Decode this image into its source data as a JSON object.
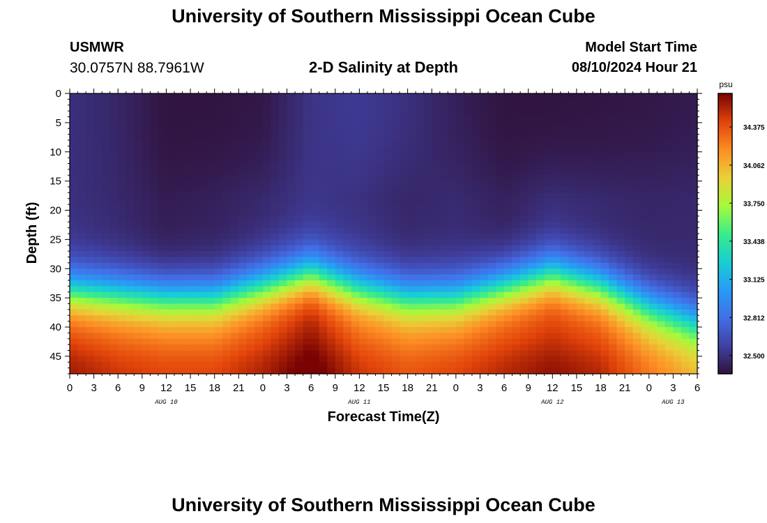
{
  "header": {
    "title": "University of Southern Mississippi Ocean Cube",
    "station": "USMWR",
    "coords": "30.0757N  88.7961W",
    "subtitle": "2-D Salinity at Depth",
    "model_start_label": "Model Start Time",
    "model_start_value": "08/10/2024 Hour 21"
  },
  "footer": {
    "title": "University of Southern Mississippi Ocean Cube"
  },
  "chart_data": {
    "type": "heatmap",
    "title": "2-D Salinity at Depth",
    "xlabel": "Forecast Time(Z)",
    "ylabel": "Depth (ft)",
    "x_ticks": [
      "0",
      "3",
      "6",
      "9",
      "12",
      "15",
      "18",
      "21",
      "0",
      "3",
      "6",
      "9",
      "12",
      "15",
      "18",
      "21",
      "0",
      "3",
      "6",
      "9",
      "12",
      "15",
      "18",
      "21",
      "0",
      "3",
      "6"
    ],
    "date_labels": [
      {
        "label": "AUG 10",
        "tick_index": 4
      },
      {
        "label": "AUG 11",
        "tick_index": 12
      },
      {
        "label": "AUG 12",
        "tick_index": 20
      },
      {
        "label": "AUG 13",
        "tick_index": 25
      }
    ],
    "y_ticks": [
      "0",
      "5",
      "10",
      "15",
      "20",
      "25",
      "30",
      "35",
      "40",
      "45"
    ],
    "ylim": [
      0,
      48
    ],
    "xlim_hours": [
      0,
      78
    ],
    "colorbar": {
      "unit": "psu",
      "ticks": [
        "34.375",
        "34.062",
        "33.750",
        "33.438",
        "33.125",
        "32.812",
        "32.500"
      ],
      "range": [
        32.35,
        34.65
      ]
    },
    "profiles": [
      {
        "hour": 0,
        "top": 32.5,
        "mid": 32.5,
        "halocline_depth": 34,
        "bottom": 34.45
      },
      {
        "hour": 6,
        "top": 32.45,
        "mid": 32.46,
        "halocline_depth": 34.5,
        "bottom": 34.35
      },
      {
        "hour": 12,
        "top": 32.36,
        "mid": 32.4,
        "halocline_depth": 35,
        "bottom": 34.3
      },
      {
        "hour": 18,
        "top": 32.36,
        "mid": 32.42,
        "halocline_depth": 35,
        "bottom": 34.3
      },
      {
        "hour": 24,
        "top": 32.38,
        "mid": 32.46,
        "halocline_depth": 33,
        "bottom": 34.42
      },
      {
        "hour": 30,
        "top": 32.52,
        "mid": 32.52,
        "halocline_depth": 31,
        "bottom": 34.6
      },
      {
        "hour": 36,
        "top": 32.55,
        "mid": 32.5,
        "halocline_depth": 33.5,
        "bottom": 34.35
      },
      {
        "hour": 42,
        "top": 32.5,
        "mid": 32.45,
        "halocline_depth": 35,
        "bottom": 34.25
      },
      {
        "hour": 48,
        "top": 32.42,
        "mid": 32.47,
        "halocline_depth": 35,
        "bottom": 34.3
      },
      {
        "hour": 54,
        "top": 32.36,
        "mid": 32.42,
        "halocline_depth": 33,
        "bottom": 34.4
      },
      {
        "hour": 60,
        "top": 32.36,
        "mid": 32.48,
        "halocline_depth": 31,
        "bottom": 34.48
      },
      {
        "hour": 66,
        "top": 32.37,
        "mid": 32.46,
        "halocline_depth": 33,
        "bottom": 34.4
      },
      {
        "hour": 72,
        "top": 32.38,
        "mid": 32.45,
        "halocline_depth": 36.5,
        "bottom": 34.15
      },
      {
        "hour": 78,
        "top": 32.4,
        "mid": 32.46,
        "halocline_depth": 39,
        "bottom": 33.95
      }
    ]
  }
}
